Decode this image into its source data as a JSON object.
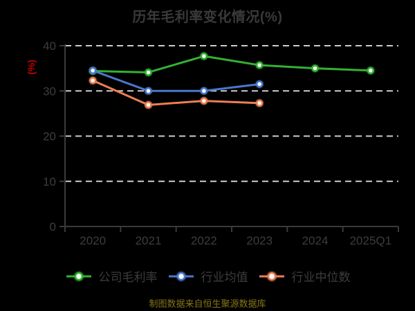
{
  "title": "历年毛利率变化情况(%)",
  "footer": "制图数据来自恒生聚源数据库",
  "y_axis_name": "(%)",
  "colors": {
    "background": "#000000",
    "title_text": "#3a3a3a",
    "axis_text": "#3d3d3d",
    "axis_line": "#3a3a3a",
    "gridline": "#cdcdcd",
    "y_axis_name_red": "#be0000",
    "footer_text": "#877618",
    "legend_text": "#3d3d3d"
  },
  "chart_data": {
    "type": "line",
    "title": "历年毛利率变化情况(%)",
    "xlabel": "",
    "ylabel": "(%)",
    "categories": [
      "2020",
      "2021",
      "2022",
      "2023",
      "2024",
      "2025Q1"
    ],
    "series": [
      {
        "key": "company-gross-margin",
        "name": "公司毛利率",
        "color": "#32b232",
        "values": [
          34.4,
          34.1,
          37.7,
          35.7,
          35.0,
          34.5
        ]
      },
      {
        "key": "industry-average",
        "name": "行业均值",
        "color": "#4a79cc",
        "values": [
          34.5,
          30.0,
          30.0,
          31.5,
          null,
          null
        ]
      },
      {
        "key": "industry-median",
        "name": "行业中位数",
        "color": "#ee7e52",
        "values": [
          32.3,
          26.9,
          27.8,
          27.3,
          null,
          null
        ]
      }
    ],
    "ylim": [
      0,
      40
    ],
    "y_ticks": [
      0,
      10,
      20,
      30,
      40
    ],
    "grid": true,
    "grid_style": "dashed",
    "legend_position": "bottom",
    "marker": "circle-white-fill"
  }
}
